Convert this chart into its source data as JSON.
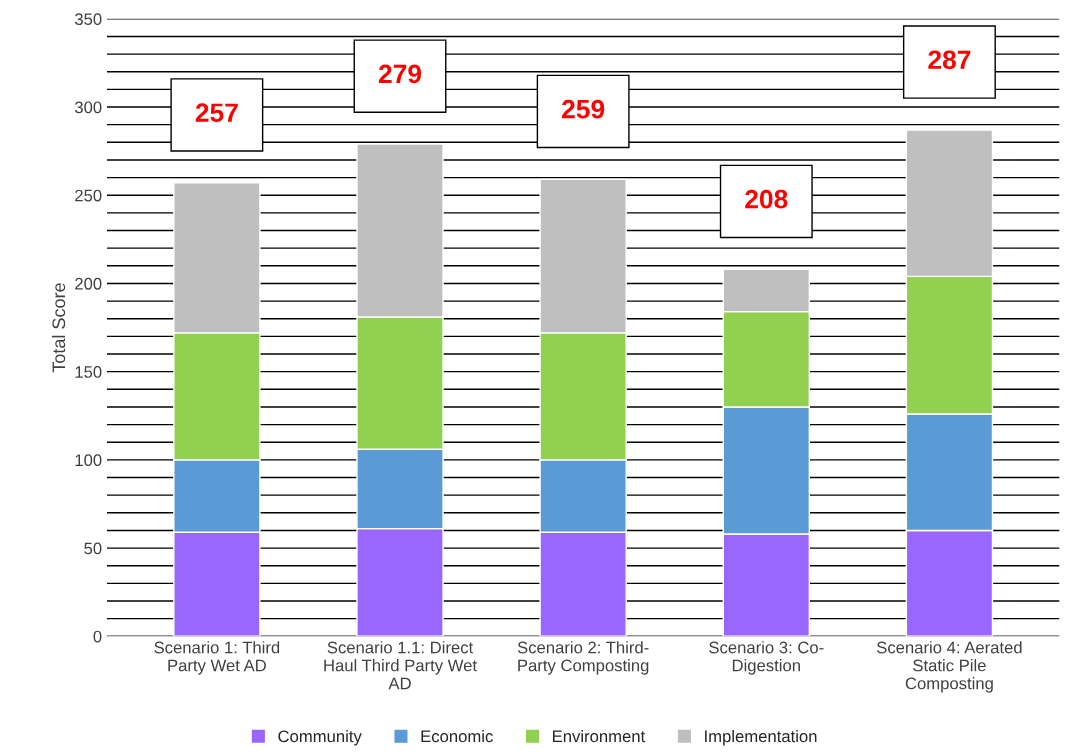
{
  "chart_data": {
    "type": "bar",
    "stacked": true,
    "ylabel": "Total Score",
    "categories": [
      "Scenario 1: Third\nParty Wet AD",
      "Scenario 1.1: Direct\nHaul Third Party Wet\nAD",
      "Scenario 2: Third-\nParty Composting",
      "Scenario 3: Co-\nDigestion",
      "Scenario 4: Aerated\nStatic Pile\nComposting"
    ],
    "series": [
      {
        "name": "Community",
        "color": "#9966ff",
        "values": [
          59,
          61,
          59,
          58,
          60
        ]
      },
      {
        "name": "Economic",
        "color": "#5b9bd5",
        "values": [
          41,
          45,
          41,
          72,
          66
        ]
      },
      {
        "name": "Environment",
        "color": "#92d050",
        "values": [
          72,
          75,
          72,
          54,
          78
        ]
      },
      {
        "name": "Implementation",
        "color": "#bfbfbf",
        "values": [
          85,
          98,
          87,
          24,
          83
        ]
      }
    ],
    "totals": [
      "257",
      "279",
      "259",
      "208",
      "287"
    ],
    "ylim": [
      0,
      350
    ],
    "yticks": [
      0,
      {
        "value": 10,
        "label": null
      },
      {
        "value": 20,
        "label": null
      },
      {
        "value": 30,
        "label": null
      },
      {
        "value": 40,
        "label": null
      },
      50,
      {
        "value": 60,
        "label": null
      },
      {
        "value": 70,
        "label": null
      },
      {
        "value": 80,
        "label": null
      },
      {
        "value": 90,
        "label": null
      },
      100,
      {
        "value": 110,
        "label": null
      },
      {
        "value": 120,
        "label": null
      },
      {
        "value": 130,
        "label": null
      },
      {
        "value": 140,
        "label": null
      },
      150,
      {
        "value": 160,
        "label": null
      },
      {
        "value": 170,
        "label": null
      },
      {
        "value": 180,
        "label": null
      },
      {
        "value": 190,
        "label": null
      },
      200,
      {
        "value": 210,
        "label": null
      },
      {
        "value": 220,
        "label": null
      },
      {
        "value": 230,
        "label": null
      },
      {
        "value": 240,
        "label": null
      },
      250,
      {
        "value": 260,
        "label": null
      },
      {
        "value": 270,
        "label": null
      },
      {
        "value": 280,
        "label": null
      },
      {
        "value": 290,
        "label": null
      },
      300,
      {
        "value": 310,
        "label": null
      },
      {
        "value": 320,
        "label": null
      },
      {
        "value": 330,
        "label": null
      },
      {
        "value": 340,
        "label": null
      },
      350
    ],
    "grid": "y",
    "legend": "bottom"
  }
}
